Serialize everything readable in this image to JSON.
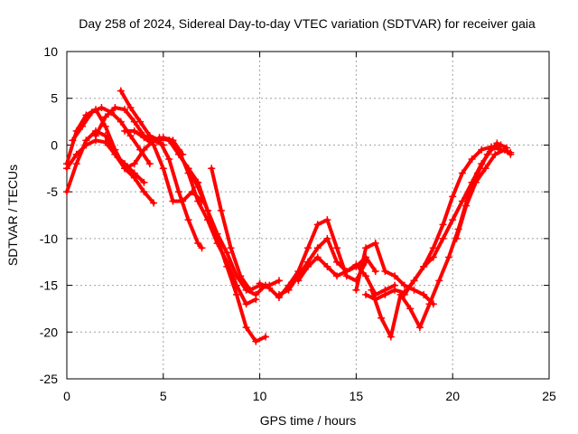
{
  "chart_data": {
    "type": "scatter",
    "title": "Day 258 of 2024, Sidereal Day-to-day VTEC variation (SDTVAR) for receiver gaia",
    "xlabel": "GPS time / hours",
    "ylabel": "SDTVAR / TECUs",
    "xlim": [
      0,
      25
    ],
    "ylim": [
      -25,
      10
    ],
    "xticks": [
      0,
      5,
      10,
      15,
      20,
      25
    ],
    "yticks": [
      -25,
      -20,
      -15,
      -10,
      -5,
      0,
      5,
      10
    ],
    "grid": true,
    "legend": "none",
    "marker": "+",
    "color": "#ff0000",
    "series": [
      {
        "name": "track-1",
        "x": [
          0.0,
          0.5,
          1.0,
          1.5,
          2.0,
          2.5,
          3.0,
          3.5,
          4.0,
          4.5
        ],
        "y": [
          -2.0,
          1.5,
          3.2,
          3.8,
          2.0,
          -0.5,
          -2.5,
          -3.5,
          -5.0,
          -6.2
        ]
      },
      {
        "name": "track-2",
        "x": [
          0.0,
          0.5,
          1.0,
          1.5,
          2.0,
          2.5,
          3.0,
          3.5,
          4.0
        ],
        "y": [
          -5.0,
          -2.0,
          0.5,
          1.5,
          1.0,
          -1.0,
          -2.0,
          -3.0,
          -4.0
        ]
      },
      {
        "name": "track-3",
        "x": [
          0.0,
          0.5,
          1.0,
          1.5,
          2.0,
          2.5,
          3.0,
          3.5,
          4.0,
          4.5,
          5.0
        ],
        "y": [
          -2.5,
          -1.0,
          0.0,
          0.5,
          0.3,
          -1.0,
          -2.5,
          -2.0,
          -0.5,
          0.5,
          0.0
        ]
      },
      {
        "name": "track-4",
        "x": [
          0.3,
          0.8,
          1.3,
          1.8,
          2.3,
          2.8,
          3.3,
          3.8,
          4.3
        ],
        "y": [
          0.5,
          2.0,
          3.5,
          4.0,
          3.5,
          2.5,
          1.0,
          -0.5,
          -2.0
        ]
      },
      {
        "name": "track-5",
        "x": [
          1.5,
          2.0,
          2.5,
          3.0,
          3.5,
          4.0,
          4.5,
          5.0,
          5.5,
          6.0
        ],
        "y": [
          1.0,
          3.0,
          4.0,
          3.8,
          2.5,
          1.0,
          0.5,
          0.8,
          0.5,
          -1.0
        ]
      },
      {
        "name": "track-6",
        "x": [
          2.8,
          3.3,
          3.8,
          4.3,
          4.8,
          5.3,
          5.8,
          6.3,
          6.8,
          7.0
        ],
        "y": [
          5.8,
          4.0,
          2.5,
          1.0,
          0.5,
          -1.5,
          -5.0,
          -8.0,
          -10.5,
          -11.0
        ]
      },
      {
        "name": "track-7",
        "x": [
          3.0,
          3.5,
          4.0,
          4.5,
          5.0,
          5.5,
          6.0,
          6.5,
          7.0
        ],
        "y": [
          1.5,
          1.5,
          0.8,
          0.0,
          -2.5,
          -6.0,
          -6.0,
          -5.0,
          -6.0
        ]
      },
      {
        "name": "track-8",
        "x": [
          4.8,
          5.3,
          5.8,
          6.3,
          6.8,
          7.3,
          7.8,
          8.3,
          8.8,
          9.3,
          9.8,
          10.3
        ],
        "y": [
          0.8,
          0.5,
          -1.0,
          -2.5,
          -4.0,
          -7.0,
          -10.0,
          -13.0,
          -16.0,
          -19.5,
          -21.0,
          -20.5
        ]
      },
      {
        "name": "track-9",
        "x": [
          5.3,
          5.8,
          6.3,
          6.8,
          7.3,
          7.8,
          8.3,
          8.8,
          9.3,
          9.8
        ],
        "y": [
          0.5,
          -0.5,
          -3.0,
          -6.0,
          -8.0,
          -10.5,
          -12.5,
          -15.0,
          -17.0,
          -16.5
        ]
      },
      {
        "name": "track-10",
        "x": [
          6.3,
          6.8,
          7.3,
          7.8,
          8.3,
          8.8,
          9.3,
          9.8,
          10.3
        ],
        "y": [
          -2.5,
          -4.5,
          -7.0,
          -9.5,
          -11.5,
          -14.0,
          -15.5,
          -16.0,
          -15.0
        ]
      },
      {
        "name": "track-11",
        "x": [
          7.5,
          8.0,
          8.5,
          9.0,
          9.5,
          10.0,
          10.5,
          11.0
        ],
        "y": [
          -2.5,
          -7.0,
          -11.0,
          -14.0,
          -15.5,
          -15.0,
          -15.0,
          -14.5
        ]
      },
      {
        "name": "track-12",
        "x": [
          10.0,
          10.5,
          11.0,
          11.5,
          12.0,
          12.5,
          13.0,
          13.5,
          14.0,
          14.5,
          15.0,
          15.5
        ],
        "y": [
          -14.8,
          -15.3,
          -16.3,
          -15.0,
          -13.5,
          -11.0,
          -8.5,
          -8.0,
          -11.0,
          -14.0,
          -14.5,
          -12.5
        ]
      },
      {
        "name": "track-13",
        "x": [
          11.0,
          11.5,
          12.0,
          12.5,
          13.0,
          13.5,
          14.0,
          14.5,
          15.0,
          15.5,
          16.0
        ],
        "y": [
          -16.0,
          -15.5,
          -14.0,
          -12.5,
          -11.0,
          -10.0,
          -12.5,
          -13.5,
          -13.0,
          -12.0,
          -13.5
        ]
      },
      {
        "name": "track-14",
        "x": [
          12.0,
          12.5,
          13.0,
          13.5,
          14.0,
          14.5,
          15.0,
          15.5,
          16.0,
          16.5,
          17.0
        ],
        "y": [
          -14.5,
          -13.0,
          -12.0,
          -13.0,
          -14.0,
          -13.5,
          -12.8,
          -14.0,
          -16.0,
          -15.5,
          -15.0
        ]
      },
      {
        "name": "track-15",
        "x": [
          15.0,
          15.5,
          16.0,
          16.5,
          17.0,
          17.5,
          18.0,
          18.5,
          19.0
        ],
        "y": [
          -15.5,
          -11.0,
          -10.5,
          -13.5,
          -14.0,
          -15.0,
          -15.5,
          -16.0,
          -17.0
        ]
      },
      {
        "name": "track-16",
        "x": [
          15.5,
          16.0,
          16.5,
          17.0,
          17.5,
          18.0,
          18.5,
          19.0,
          19.5,
          20.0,
          20.5,
          21.0,
          21.5,
          22.0,
          22.5,
          23.0
        ],
        "y": [
          -16.0,
          -16.5,
          -16.0,
          -15.5,
          -15.8,
          -14.5,
          -13.0,
          -11.0,
          -8.5,
          -5.5,
          -3.0,
          -1.5,
          -0.5,
          -0.2,
          -0.5,
          -0.8
        ]
      },
      {
        "name": "track-17",
        "x": [
          15.8,
          16.3,
          16.8,
          17.3,
          17.8,
          18.3,
          18.8,
          19.3,
          19.8,
          20.3,
          20.8,
          21.3,
          21.8,
          22.3,
          22.8
        ],
        "y": [
          -15.5,
          -18.5,
          -20.5,
          -16.0,
          -17.5,
          -19.5,
          -17.0,
          -14.5,
          -12.0,
          -9.0,
          -5.5,
          -3.0,
          -1.0,
          0.2,
          -0.3
        ]
      },
      {
        "name": "track-18",
        "x": [
          17.5,
          18.0,
          18.5,
          19.0,
          19.5,
          20.0,
          20.5,
          21.0,
          21.5,
          22.0,
          22.5
        ],
        "y": [
          -16.0,
          -14.5,
          -13.0,
          -12.0,
          -10.0,
          -8.0,
          -6.0,
          -4.0,
          -2.0,
          -0.5,
          0.0
        ]
      },
      {
        "name": "track-19",
        "x": [
          20.2,
          20.7,
          21.2,
          21.7,
          22.2,
          22.7,
          23.0
        ],
        "y": [
          -10.0,
          -6.5,
          -4.0,
          -2.5,
          -1.0,
          -0.5,
          -1.0
        ]
      }
    ]
  }
}
